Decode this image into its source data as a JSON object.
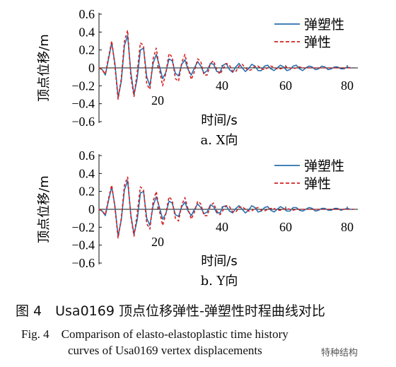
{
  "chart_data": [
    {
      "type": "line",
      "subplot_label": "a. X向",
      "xlabel": "时间/s",
      "ylabel": "顶点位移/m",
      "xlim": [
        0,
        80
      ],
      "ylim": [
        -0.6,
        0.6
      ],
      "xticks": [
        "20",
        "40",
        "60",
        "80"
      ],
      "yticks": [
        "0.6",
        "0.4",
        "0.2",
        "0",
        "−0.2",
        "−0.4",
        "−0.6"
      ],
      "legend_position": "top-right",
      "series": [
        {
          "name": "弹塑性",
          "color": "#2a6fae",
          "style": "solid",
          "x": [
            0,
            1,
            2,
            3,
            4,
            5,
            6,
            7,
            8,
            9,
            10,
            11,
            12,
            13,
            14,
            15,
            16,
            17,
            18,
            19,
            20,
            21,
            22,
            23,
            24,
            25,
            26,
            27,
            28,
            29,
            30,
            31,
            32,
            33,
            34,
            35,
            36,
            37,
            38,
            39,
            40,
            41,
            42,
            43,
            44,
            45,
            46,
            47,
            48,
            49,
            50,
            51,
            52,
            53,
            54,
            55,
            56,
            57,
            58,
            59,
            60,
            61,
            62,
            63,
            64,
            65,
            66,
            67,
            68,
            69,
            70,
            71,
            72,
            73,
            74,
            75,
            76,
            77,
            78,
            79,
            80
          ],
          "y": [
            0.0,
            -0.02,
            -0.08,
            0.1,
            0.28,
            0.05,
            -0.33,
            -0.15,
            0.25,
            0.36,
            -0.05,
            -0.3,
            -0.12,
            0.2,
            0.22,
            -0.1,
            -0.2,
            0.05,
            0.15,
            0.02,
            -0.12,
            -0.05,
            0.1,
            0.08,
            -0.06,
            -0.09,
            0.04,
            0.09,
            -0.02,
            -0.08,
            0.0,
            0.07,
            0.02,
            -0.06,
            -0.03,
            0.05,
            0.04,
            -0.04,
            -0.05,
            0.03,
            0.05,
            -0.02,
            -0.05,
            0.01,
            0.05,
            0.0,
            -0.04,
            -0.01,
            0.04,
            0.02,
            -0.03,
            -0.03,
            0.02,
            0.03,
            -0.01,
            -0.03,
            0.0,
            0.03,
            0.01,
            -0.03,
            -0.02,
            0.02,
            0.03,
            -0.01,
            -0.03,
            0.0,
            0.02,
            0.01,
            -0.02,
            -0.01,
            0.02,
            0.01,
            -0.02,
            -0.01,
            0.01,
            0.01,
            -0.01,
            -0.01,
            0.01,
            0.0,
            0.0
          ]
        },
        {
          "name": "弹性",
          "color": "#d62020",
          "style": "dashed",
          "x": [
            0,
            1,
            2,
            3,
            4,
            5,
            6,
            7,
            8,
            9,
            10,
            11,
            12,
            13,
            14,
            15,
            16,
            17,
            18,
            19,
            20,
            21,
            22,
            23,
            24,
            25,
            26,
            27,
            28,
            29,
            30,
            31,
            32,
            33,
            34,
            35,
            36,
            37,
            38,
            39,
            40,
            41,
            42,
            43,
            44,
            45,
            46,
            47,
            48,
            49,
            50,
            51,
            52,
            53,
            54,
            55,
            56,
            57,
            58,
            59,
            60,
            61,
            62,
            63,
            64,
            65,
            66,
            67,
            68,
            69,
            70,
            71,
            72,
            73,
            74,
            75,
            76,
            77,
            78,
            79,
            80
          ],
          "y": [
            0.0,
            -0.02,
            -0.07,
            0.12,
            0.3,
            0.02,
            -0.35,
            -0.12,
            0.3,
            0.42,
            -0.1,
            -0.32,
            -0.05,
            0.28,
            0.25,
            -0.18,
            -0.24,
            0.1,
            0.22,
            -0.02,
            -0.2,
            -0.06,
            0.16,
            0.12,
            -0.12,
            -0.15,
            0.06,
            0.15,
            0.0,
            -0.13,
            -0.04,
            0.1,
            0.07,
            -0.08,
            -0.08,
            0.05,
            0.08,
            -0.02,
            -0.07,
            -0.01,
            0.05,
            0.03,
            -0.04,
            -0.04,
            0.02,
            0.04,
            0.0,
            -0.03,
            -0.02,
            0.02,
            0.02,
            -0.01,
            -0.02,
            0.0,
            0.02,
            0.01,
            -0.01,
            -0.01,
            0.0,
            0.01,
            0.0,
            -0.01,
            0.0,
            0.01,
            0.0,
            0.0,
            0.0,
            0.0,
            0.0,
            0.0,
            0.0,
            0.0,
            0.0,
            0.0,
            0.0,
            0.0,
            0.0,
            0.0,
            0.0,
            0.0,
            0.0
          ]
        }
      ]
    },
    {
      "type": "line",
      "subplot_label": "b. Y向",
      "xlabel": "时间/s",
      "ylabel": "顶点位移/m",
      "xlim": [
        0,
        80
      ],
      "ylim": [
        -0.6,
        0.6
      ],
      "xticks": [
        "20",
        "40",
        "60",
        "80"
      ],
      "yticks": [
        "0.6",
        "0.4",
        "0.2",
        "0",
        "−0.2",
        "−0.4",
        "−0.6"
      ],
      "legend_position": "top-right",
      "series": [
        {
          "name": "弹塑性",
          "color": "#2a6fae",
          "style": "solid",
          "x": [
            0,
            1,
            2,
            3,
            4,
            5,
            6,
            7,
            8,
            9,
            10,
            11,
            12,
            13,
            14,
            15,
            16,
            17,
            18,
            19,
            20,
            21,
            22,
            23,
            24,
            25,
            26,
            27,
            28,
            29,
            30,
            31,
            32,
            33,
            34,
            35,
            36,
            37,
            38,
            39,
            40,
            41,
            42,
            43,
            44,
            45,
            46,
            47,
            48,
            49,
            50,
            51,
            52,
            53,
            54,
            55,
            56,
            57,
            58,
            59,
            60,
            61,
            62,
            63,
            64,
            65,
            66,
            67,
            68,
            69,
            70,
            71,
            72,
            73,
            74,
            75,
            76,
            77,
            78,
            79,
            80
          ],
          "y": [
            0.0,
            -0.02,
            -0.07,
            0.1,
            0.25,
            0.04,
            -0.3,
            -0.12,
            0.22,
            0.32,
            -0.06,
            -0.28,
            -0.12,
            0.18,
            0.2,
            -0.1,
            -0.18,
            0.04,
            0.14,
            0.02,
            -0.11,
            -0.05,
            0.09,
            0.07,
            -0.06,
            -0.08,
            0.03,
            0.08,
            -0.02,
            -0.07,
            0.0,
            0.06,
            0.02,
            -0.05,
            -0.03,
            0.05,
            0.03,
            -0.04,
            -0.04,
            0.03,
            0.04,
            -0.02,
            -0.04,
            0.01,
            0.04,
            0.0,
            -0.04,
            -0.01,
            0.04,
            0.02,
            -0.03,
            -0.02,
            0.02,
            0.03,
            -0.01,
            -0.03,
            0.0,
            0.03,
            0.01,
            -0.02,
            -0.02,
            0.02,
            0.02,
            -0.01,
            -0.02,
            0.0,
            0.02,
            0.01,
            -0.02,
            -0.01,
            0.01,
            0.01,
            -0.01,
            -0.01,
            0.01,
            0.01,
            -0.01,
            0.0,
            0.01,
            0.0,
            0.0
          ]
        },
        {
          "name": "弹性",
          "color": "#d62020",
          "style": "dashed",
          "x": [
            0,
            1,
            2,
            3,
            4,
            5,
            6,
            7,
            8,
            9,
            10,
            11,
            12,
            13,
            14,
            15,
            16,
            17,
            18,
            19,
            20,
            21,
            22,
            23,
            24,
            25,
            26,
            27,
            28,
            29,
            30,
            31,
            32,
            33,
            34,
            35,
            36,
            37,
            38,
            39,
            40,
            41,
            42,
            43,
            44,
            45,
            46,
            47,
            48,
            49,
            50,
            51,
            52,
            53,
            54,
            55,
            56,
            57,
            58,
            59,
            60,
            61,
            62,
            63,
            64,
            65,
            66,
            67,
            68,
            69,
            70,
            71,
            72,
            73,
            74,
            75,
            76,
            77,
            78,
            79,
            80
          ],
          "y": [
            0.0,
            -0.02,
            -0.06,
            0.12,
            0.27,
            0.02,
            -0.32,
            -0.1,
            0.27,
            0.36,
            -0.08,
            -0.3,
            -0.05,
            0.25,
            0.22,
            -0.16,
            -0.22,
            0.09,
            0.2,
            -0.02,
            -0.18,
            -0.05,
            0.14,
            0.1,
            -0.1,
            -0.13,
            0.05,
            0.13,
            0.0,
            -0.11,
            -0.03,
            0.09,
            0.06,
            -0.07,
            -0.07,
            0.04,
            0.07,
            -0.02,
            -0.06,
            -0.01,
            0.04,
            0.03,
            -0.03,
            -0.03,
            0.02,
            0.03,
            0.0,
            -0.02,
            -0.02,
            0.01,
            0.02,
            -0.01,
            -0.02,
            0.0,
            0.01,
            0.01,
            -0.01,
            -0.01,
            0.0,
            0.01,
            0.0,
            -0.01,
            0.0,
            0.0,
            0.0,
            0.0,
            0.0,
            0.0,
            0.0,
            0.0,
            0.0,
            0.0,
            0.0,
            0.0,
            0.0,
            0.0,
            0.0,
            0.0,
            0.0,
            0.0,
            0.0
          ]
        }
      ]
    }
  ],
  "caption": {
    "cn": "图 4　Usa0169 顶点位移弹性-弹塑性时程曲线对比",
    "en_line1": "Fig. 4　Comparison of elasto-elastoplastic time history",
    "en_line2": "curves of Usa0169 vertex displacements"
  },
  "watermark": "特种结构"
}
